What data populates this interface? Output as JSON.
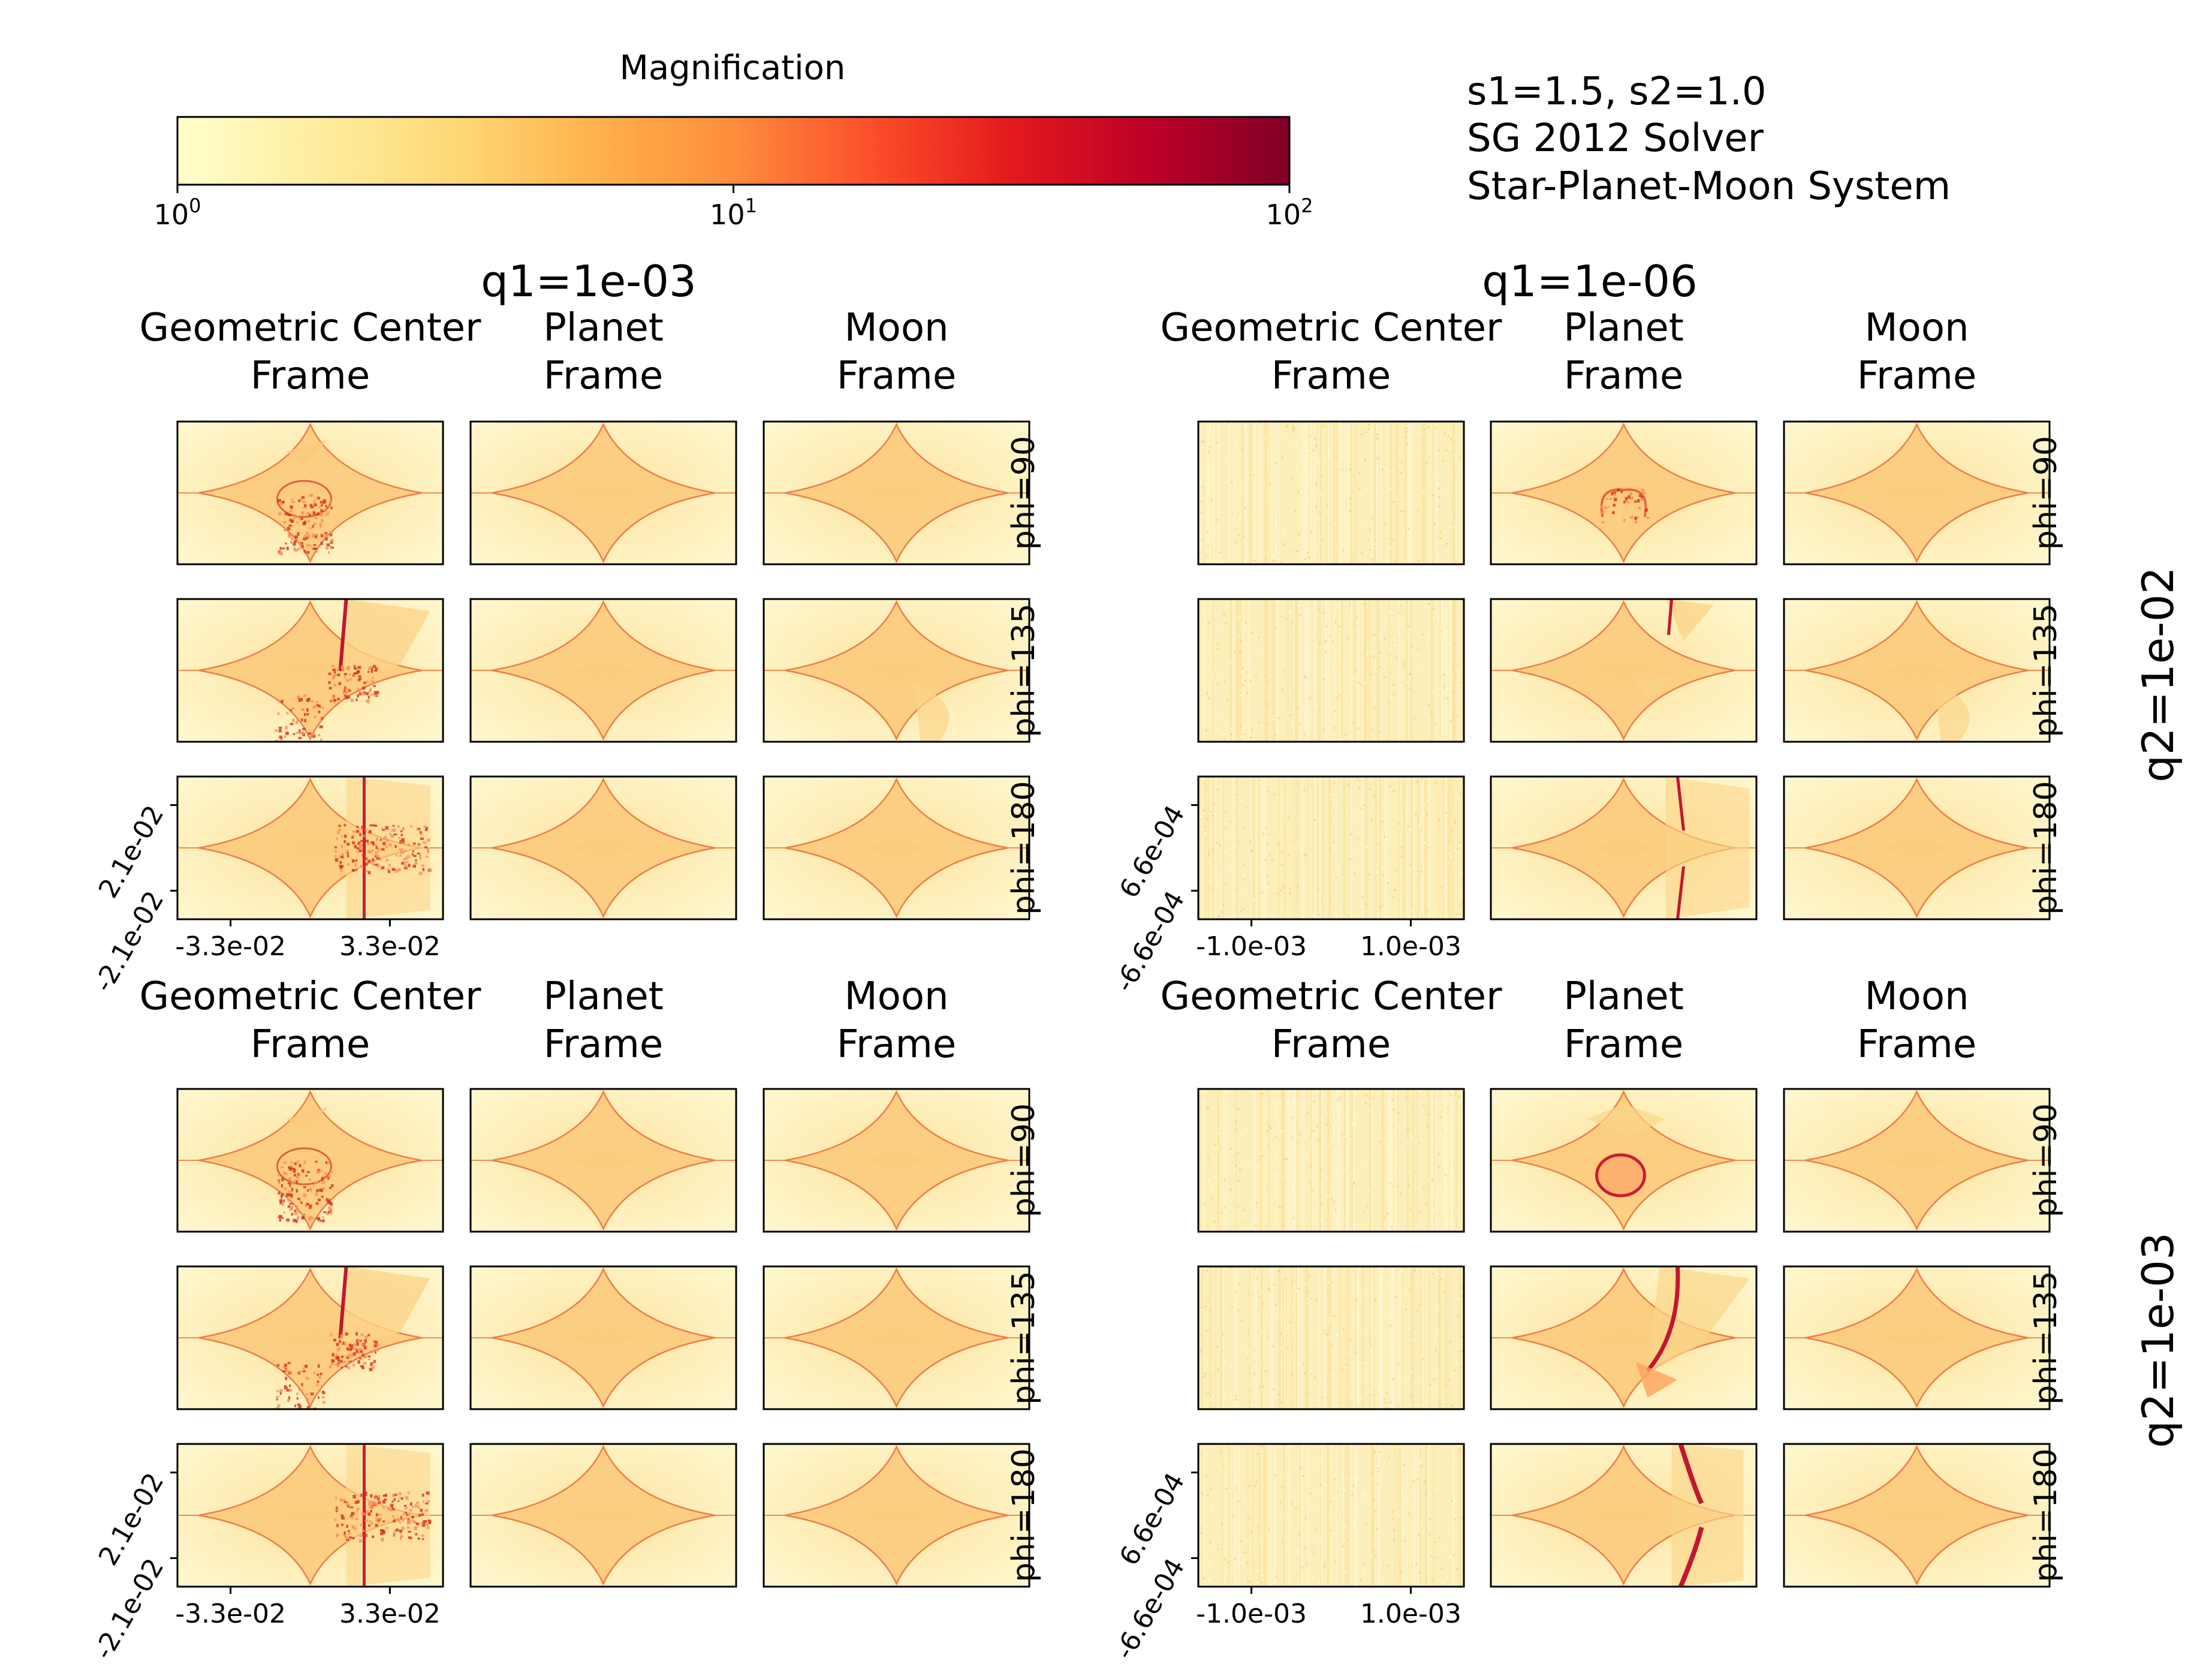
{
  "colorbar": {
    "label": "Magnification",
    "scale": "log",
    "range": [
      1,
      100
    ],
    "ticks": [
      {
        "base": "10",
        "exp": "0",
        "value": 1
      },
      {
        "base": "10",
        "exp": "1",
        "value": 10
      },
      {
        "base": "10",
        "exp": "2",
        "value": 100
      }
    ],
    "colormap": [
      "#ffffcc",
      "#ffeda0",
      "#fed976",
      "#feb24c",
      "#fd8d3c",
      "#fc4e2a",
      "#e31a1c",
      "#bd0026",
      "#800026"
    ]
  },
  "info": {
    "line1": "s1=1.5, s2=1.0",
    "line2": "SG 2012 Solver",
    "line3": "Star-Planet-Moon System"
  },
  "frames": {
    "geometric_line1": "Geometric Center",
    "geometric_line2": "Frame",
    "planet_line1": "Planet",
    "planet_line2": "Frame",
    "moon_line1": "Moon",
    "moon_line2": "Frame"
  },
  "phi_labels": [
    "phi=90",
    "phi=135",
    "phi=180"
  ],
  "chart_data": {
    "type": "heatmap",
    "description_kind": "small-multiples magnification maps",
    "columns": [
      {
        "title": "q1=1e-03",
        "xticks": [
          "-3.3e-02",
          "3.3e-02"
        ],
        "yticks": [
          "2.1e-02",
          "-2.1e-02"
        ]
      },
      {
        "title": "q1=1e-06",
        "xticks": [
          "-1.0e-03",
          "1.0e-03"
        ],
        "yticks": [
          "6.6e-04",
          "-6.6e-04"
        ]
      }
    ],
    "rows": [
      {
        "title": "q2=1e-02"
      },
      {
        "title": "q2=1e-03"
      }
    ],
    "frames_per_group": [
      "Geometric Center Frame",
      "Planet Frame",
      "Moon Frame"
    ],
    "phi_values": [
      90,
      135,
      180
    ],
    "panels": [
      [
        "caustic-perturbed-center",
        "caustic",
        "caustic",
        "noise",
        "caustic-small-arc",
        "caustic"
      ],
      [
        "caustic-perturbed-streak",
        "caustic",
        "caustic-tail",
        "noise",
        "caustic-streak",
        "caustic-tail"
      ],
      [
        "caustic-perturbed-vertical",
        "caustic",
        "caustic",
        "noise",
        "caustic-vertical",
        "caustic"
      ],
      [
        "caustic-perturbed-center",
        "caustic",
        "caustic",
        "noise",
        "caustic-ring",
        "caustic"
      ],
      [
        "caustic-perturbed-streak",
        "caustic",
        "caustic",
        "noise",
        "caustic-strong-streak",
        "caustic"
      ],
      [
        "caustic-perturbed-vertical",
        "caustic",
        "caustic",
        "noise",
        "caustic-strong-vertical",
        "caustic"
      ]
    ]
  }
}
